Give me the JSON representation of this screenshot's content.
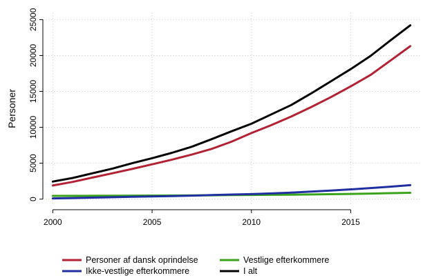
{
  "chart_data": {
    "type": "line",
    "title": "",
    "xlabel": "",
    "ylabel": "Personer",
    "xlim": [
      1999.5,
      2018.5
    ],
    "ylim": [
      -800,
      26000
    ],
    "x_ticks": [
      2000,
      2005,
      2010,
      2015
    ],
    "y_ticks": [
      0,
      5000,
      10000,
      15000,
      20000,
      25000
    ],
    "grid": true,
    "legend_position": "bottom",
    "x": [
      2000,
      2001,
      2002,
      2003,
      2004,
      2005,
      2006,
      2007,
      2008,
      2009,
      2010,
      2011,
      2012,
      2013,
      2014,
      2015,
      2016,
      2017,
      2018
    ],
    "series": [
      {
        "name": "Personer af dansk oprindelse",
        "color": "#b22234",
        "values": [
          1900,
          2400,
          3000,
          3600,
          4200,
          4850,
          5500,
          6200,
          7000,
          8000,
          9200,
          10300,
          11500,
          12800,
          14200,
          15700,
          17300,
          19300,
          21300
        ]
      },
      {
        "name": "Vestlige efterkommere",
        "color": "#3aa21c",
        "values": [
          450,
          460,
          470,
          480,
          490,
          500,
          510,
          520,
          540,
          560,
          580,
          600,
          620,
          650,
          690,
          730,
          780,
          830,
          880
        ]
      },
      {
        "name": "Ikke-vestlige efterkommere",
        "color": "#1f2ea0",
        "values": [
          100,
          150,
          210,
          270,
          330,
          380,
          430,
          490,
          560,
          640,
          700,
          790,
          900,
          1050,
          1200,
          1360,
          1540,
          1740,
          1950
        ]
      },
      {
        "name": "I alt",
        "color": "#000000",
        "values": [
          2450,
          2950,
          3600,
          4250,
          5000,
          5700,
          6450,
          7300,
          8350,
          9450,
          10500,
          11800,
          13100,
          14700,
          16400,
          18100,
          19950,
          22100,
          24200
        ]
      }
    ]
  }
}
